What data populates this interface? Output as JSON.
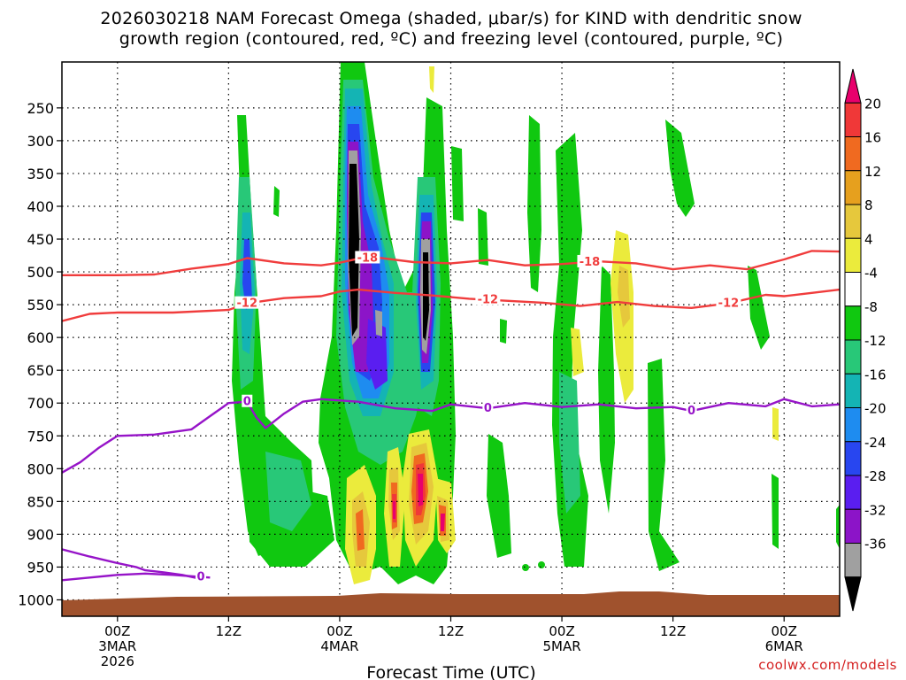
{
  "chart_data": {
    "type": "heatmap",
    "title_line1": "2026030218 NAM Forecast Omega (shaded, μbar/s) for KIND with dendritic snow",
    "title_line2": "growth region (contoured, red, ºC) and freezing level (contoured, purple, ºC)",
    "xlabel": "Forecast Time (UTC)",
    "credit": "coolwx.com/models",
    "y_ticks": [
      "250",
      "300",
      "350",
      "400",
      "450",
      "500",
      "550",
      "600",
      "650",
      "700",
      "750",
      "800",
      "850",
      "900",
      "950",
      "1000"
    ],
    "y_values": [
      250,
      300,
      350,
      400,
      450,
      500,
      550,
      600,
      650,
      700,
      750,
      800,
      850,
      900,
      950,
      1000
    ],
    "ylim": [
      1025,
      180
    ],
    "xlim": [
      -6,
      78
    ],
    "x_ticks": [
      {
        "hour": 0,
        "label": "00Z",
        "day": "3MAR",
        "year": "2026"
      },
      {
        "hour": 12,
        "label": "12Z",
        "day": "",
        "year": ""
      },
      {
        "hour": 24,
        "label": "00Z",
        "day": "4MAR",
        "year": ""
      },
      {
        "hour": 36,
        "label": "12Z",
        "day": "",
        "year": ""
      },
      {
        "hour": 48,
        "label": "00Z",
        "day": "5MAR",
        "year": ""
      },
      {
        "hour": 60,
        "label": "12Z",
        "day": "",
        "year": ""
      },
      {
        "hour": 72,
        "label": "00Z",
        "day": "6MAR",
        "year": ""
      }
    ],
    "colorbar": {
      "labels": [
        "20",
        "16",
        "12",
        "8",
        "4",
        "-4",
        "-8",
        "-12",
        "-16",
        "-20",
        "-24",
        "-28",
        "-32",
        "-36"
      ],
      "values": [
        20,
        16,
        12,
        8,
        4,
        -4,
        -8,
        -12,
        -16,
        -20,
        -24,
        -28,
        -32,
        -36
      ],
      "colors": [
        "#e8006c",
        "#f03838",
        "#f06a20",
        "#e6a01e",
        "#e6c83c",
        "#ebeb3c",
        "#ffffff",
        "#10c810",
        "#28c878",
        "#14b4b4",
        "#1e8cf0",
        "#2846f0",
        "#5a1ef0",
        "#8c14c8",
        "#a0a0a0",
        "#000000"
      ]
    },
    "contours": [
      {
        "name": "-18 C",
        "color": "#f03c3c",
        "label": "-18",
        "points": [
          [
            -6,
            505
          ],
          [
            0,
            505
          ],
          [
            4,
            504
          ],
          [
            8,
            495
          ],
          [
            12,
            488
          ],
          [
            14,
            479
          ],
          [
            18,
            487
          ],
          [
            22,
            490
          ],
          [
            24,
            486
          ],
          [
            26,
            480
          ],
          [
            28,
            478
          ],
          [
            32,
            485
          ],
          [
            36,
            487
          ],
          [
            40,
            482
          ],
          [
            44,
            490
          ],
          [
            48,
            488
          ],
          [
            52,
            484
          ],
          [
            56,
            487
          ],
          [
            60,
            496
          ],
          [
            64,
            490
          ],
          [
            68,
            496
          ],
          [
            72,
            481
          ],
          [
            75,
            468
          ],
          [
            78,
            469
          ]
        ]
      },
      {
        "name": "-12 C",
        "color": "#f03c3c",
        "label": "-12",
        "points": [
          [
            -6,
            575
          ],
          [
            -3,
            564
          ],
          [
            0,
            562
          ],
          [
            6,
            562
          ],
          [
            12,
            558
          ],
          [
            14,
            548
          ],
          [
            18,
            540
          ],
          [
            22,
            537
          ],
          [
            24,
            530
          ],
          [
            26,
            527
          ],
          [
            30,
            532
          ],
          [
            34,
            536
          ],
          [
            38,
            541
          ],
          [
            42,
            544
          ],
          [
            46,
            547
          ],
          [
            50,
            552
          ],
          [
            54,
            546
          ],
          [
            58,
            552
          ],
          [
            62,
            555
          ],
          [
            66,
            548
          ],
          [
            70,
            535
          ],
          [
            72,
            537
          ],
          [
            75,
            532
          ],
          [
            78,
            527
          ]
        ]
      },
      {
        "name": "0 C",
        "color": "#9614c8",
        "label": "0",
        "points": [
          [
            -6,
            806
          ],
          [
            -4,
            790
          ],
          [
            -2,
            768
          ],
          [
            0,
            750
          ],
          [
            4,
            748
          ],
          [
            8,
            740
          ],
          [
            10,
            720
          ],
          [
            12,
            700
          ],
          [
            14,
            698
          ],
          [
            15,
            722
          ],
          [
            16,
            738
          ],
          [
            18,
            716
          ],
          [
            20,
            698
          ],
          [
            22,
            694
          ],
          [
            26,
            698
          ],
          [
            30,
            708
          ],
          [
            34,
            712
          ],
          [
            36,
            702
          ],
          [
            40,
            708
          ],
          [
            44,
            700
          ],
          [
            48,
            706
          ],
          [
            52,
            702
          ],
          [
            56,
            708
          ],
          [
            60,
            706
          ],
          [
            62,
            712
          ],
          [
            66,
            700
          ],
          [
            70,
            705
          ],
          [
            72,
            694
          ],
          [
            75,
            705
          ],
          [
            78,
            702
          ]
        ]
      },
      {
        "name": "0 C low",
        "color": "#9614c8",
        "label": "0",
        "points": [
          [
            -6,
            970
          ],
          [
            -3,
            966
          ],
          [
            0,
            962
          ],
          [
            3,
            960
          ],
          [
            6,
            962
          ],
          [
            8,
            964
          ],
          [
            10,
            966
          ]
        ]
      },
      {
        "name": "0 C low 2",
        "color": "#9614c8",
        "label": "",
        "points": [
          [
            -6,
            923
          ],
          [
            -3,
            934
          ],
          [
            0,
            944
          ],
          [
            2,
            950
          ],
          [
            3,
            955
          ],
          [
            5,
            958
          ],
          [
            7,
            962
          ],
          [
            9,
            968
          ]
        ]
      }
    ]
  }
}
